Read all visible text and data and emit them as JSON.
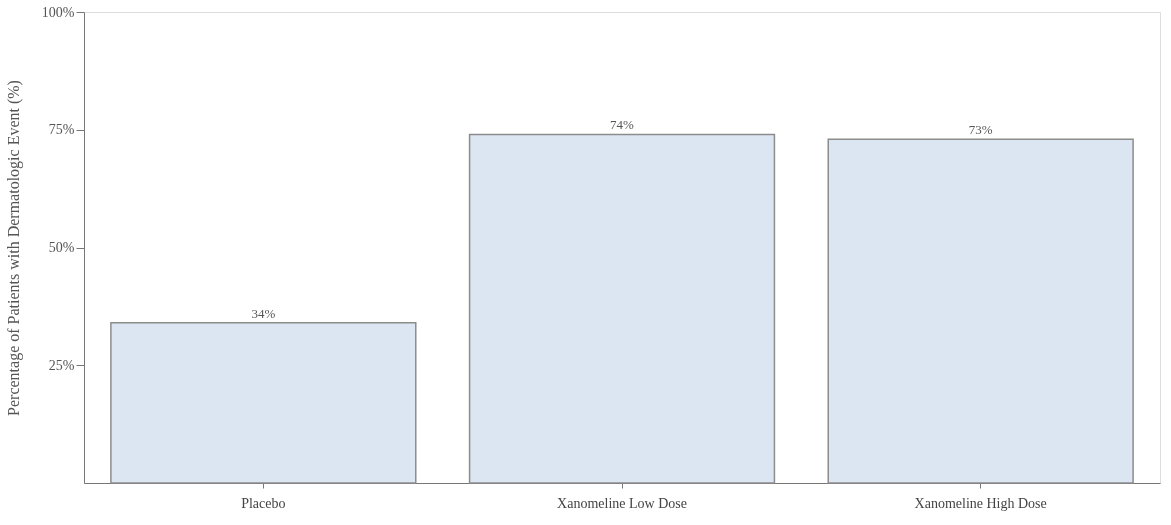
{
  "chart_data": {
    "type": "bar",
    "ylabel": "Percentage of Patients with Dermatologic Event (%)",
    "categories": [
      "Placebo",
      "Xanomeline Low Dose",
      "Xanomeline High Dose"
    ],
    "values": [
      34,
      74,
      73
    ],
    "value_labels": [
      "34%",
      "74%",
      "73%"
    ],
    "color": "#dce6f2",
    "ylim": [
      0,
      100
    ],
    "yticks": [
      {
        "value": 25,
        "label": "25%"
      },
      {
        "value": 50,
        "label": "50%"
      },
      {
        "value": 75,
        "label": "75%"
      },
      {
        "value": 100,
        "label": "100%"
      }
    ],
    "grid": false
  }
}
